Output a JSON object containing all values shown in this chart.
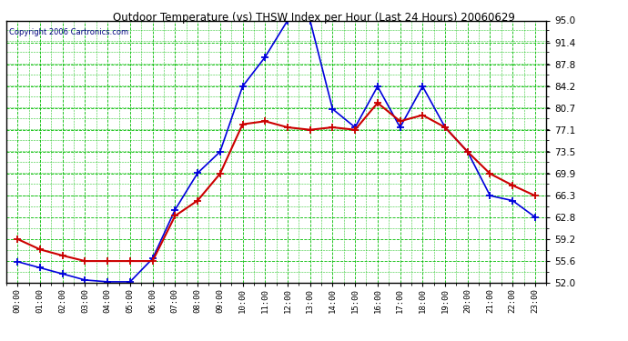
{
  "title": "Outdoor Temperature (vs) THSW Index per Hour (Last 24 Hours) 20060629",
  "copyright": "Copyright 2006 Cartronics.com",
  "hours": [
    "00:00",
    "01:00",
    "02:00",
    "03:00",
    "04:00",
    "05:00",
    "06:00",
    "07:00",
    "08:00",
    "09:00",
    "10:00",
    "11:00",
    "12:00",
    "13:00",
    "14:00",
    "15:00",
    "16:00",
    "17:00",
    "18:00",
    "19:00",
    "20:00",
    "21:00",
    "22:00",
    "23:00"
  ],
  "temp_blue": [
    55.5,
    54.5,
    53.5,
    52.5,
    52.2,
    52.2,
    56.0,
    64.0,
    70.0,
    73.5,
    84.2,
    89.0,
    95.0,
    95.0,
    80.5,
    77.5,
    84.2,
    77.5,
    84.2,
    77.5,
    73.5,
    66.3,
    65.5,
    62.8
  ],
  "thsw_red": [
    59.2,
    57.5,
    56.5,
    55.6,
    55.6,
    55.6,
    55.6,
    63.0,
    65.5,
    69.9,
    78.0,
    78.5,
    77.5,
    77.1,
    77.5,
    77.1,
    81.5,
    78.5,
    79.5,
    77.5,
    73.5,
    69.9,
    68.0,
    66.3
  ],
  "ylim_min": 52.0,
  "ylim_max": 95.0,
  "yticks": [
    52.0,
    55.6,
    59.2,
    62.8,
    66.3,
    69.9,
    73.5,
    77.1,
    80.7,
    84.2,
    87.8,
    91.4,
    95.0
  ],
  "bg_color": "#ffffff",
  "plot_bg_color": "#ffffff",
  "grid_major_color": "#00bb00",
  "grid_minor_color": "#00bb00",
  "line_blue": "#0000dd",
  "line_red": "#cc0000",
  "title_color": "#000000",
  "axis_color": "#000000",
  "border_color": "#000000",
  "copyright_color": "#000080"
}
